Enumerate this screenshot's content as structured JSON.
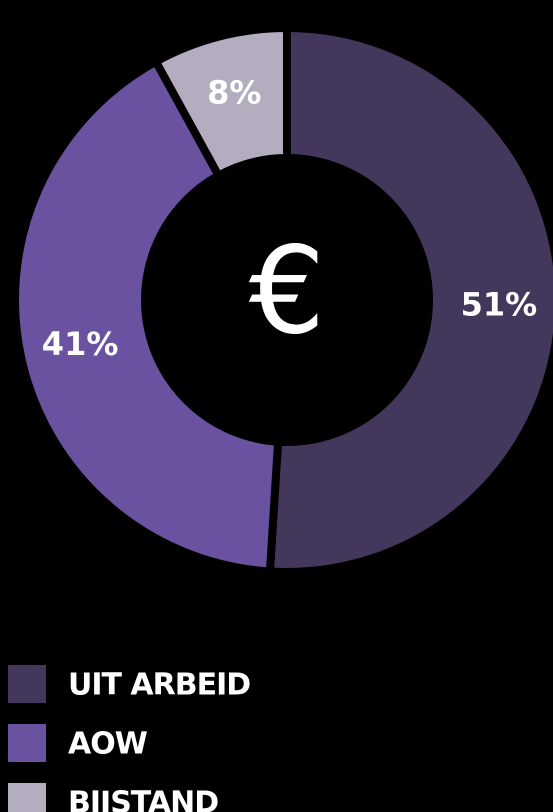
{
  "chart_data": {
    "type": "pie",
    "center_text": "€",
    "categories": [
      "UIT ARBEID",
      "AOW",
      "BIJSTAND"
    ],
    "values": [
      51,
      41,
      8
    ],
    "value_labels": [
      "51%",
      "41%",
      "8%"
    ],
    "colors": [
      "#43385c",
      "#6a52a0",
      "#b3adbf"
    ],
    "legend": "bottom-left"
  }
}
